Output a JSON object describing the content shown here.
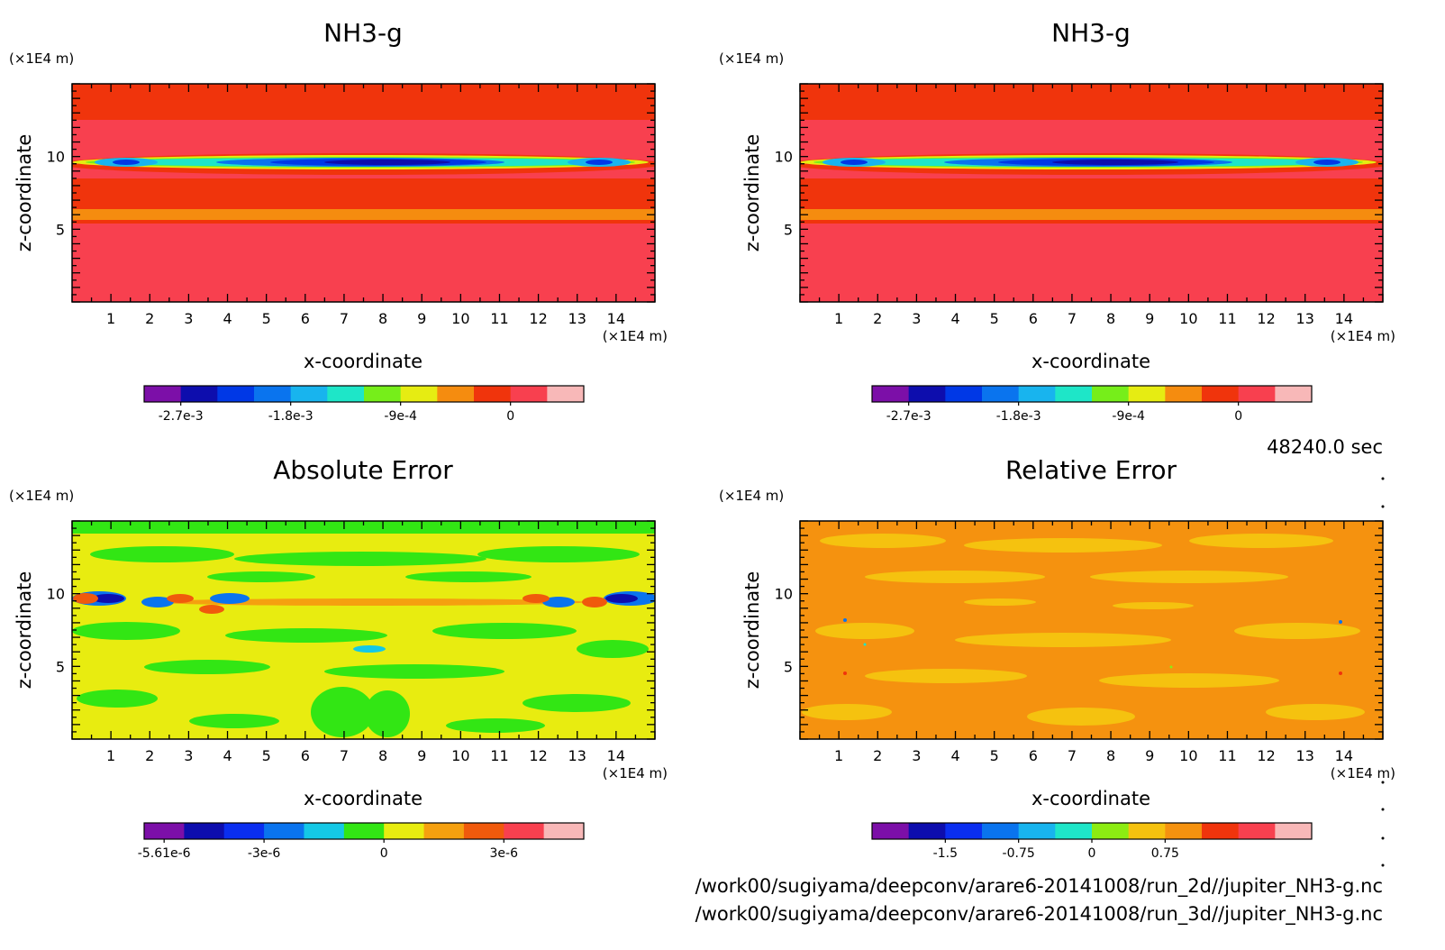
{
  "time_label": "48240.0 sec",
  "file_paths": [
    "/work00/sugiyama/deepconv/arare6-20141008/run_2d//jupiter_NH3-g.nc",
    "/work00/sugiyama/deepconv/arare6-20141008/run_3d//jupiter_NH3-g.nc"
  ],
  "chart_data": [
    {
      "type": "heatmap",
      "title": "NH3-g",
      "xlabel": "x-coordinate",
      "ylabel": "z-coordinate",
      "x_unit": "(×1E4 m)",
      "y_unit": "(×1E4 m)",
      "xlim": [
        0,
        15
      ],
      "ylim": [
        0,
        15
      ],
      "x_ticks": [
        1,
        2,
        3,
        4,
        5,
        6,
        7,
        8,
        9,
        10,
        11,
        12,
        13,
        14
      ],
      "y_ticks": [
        5,
        10
      ],
      "field": "mostly ~0 (red); strong negative band near z=9.5 reaching -2.7e-3 (dark blue) centred at x=7-10; weak orange layer near z=6",
      "colorbar": {
        "colors": [
          "#7c0fa8",
          "#0d0dad",
          "#0038e6",
          "#0a74ee",
          "#18b4ee",
          "#1ee6c8",
          "#76ee1a",
          "#e6ec12",
          "#f58c0f",
          "#f0340c",
          "#f8404f",
          "#f8b8b8"
        ],
        "tick_labels": [
          "-2.7e-3",
          "-1.8e-3",
          "-9e-4",
          "0"
        ],
        "tick_positions": [
          1,
          4,
          7,
          10
        ]
      }
    },
    {
      "type": "heatmap",
      "title": "NH3-g",
      "xlabel": "x-coordinate",
      "ylabel": "z-coordinate",
      "x_unit": "(×1E4 m)",
      "y_unit": "(×1E4 m)",
      "xlim": [
        0,
        15
      ],
      "ylim": [
        0,
        15
      ],
      "x_ticks": [
        1,
        2,
        3,
        4,
        5,
        6,
        7,
        8,
        9,
        10,
        11,
        12,
        13,
        14
      ],
      "y_ticks": [
        5,
        10
      ],
      "field": "mostly ~0 (red); strong negative band near z=9.5 reaching -2.7e-3 (dark blue) centred at x=7-10; weak orange layer near z=6",
      "colorbar": {
        "colors": [
          "#7c0fa8",
          "#0d0dad",
          "#0038e6",
          "#0a74ee",
          "#18b4ee",
          "#1ee6c8",
          "#76ee1a",
          "#e6ec12",
          "#f58c0f",
          "#f0340c",
          "#f8404f",
          "#f8b8b8"
        ],
        "tick_labels": [
          "-2.7e-3",
          "-1.8e-3",
          "-9e-4",
          "0"
        ],
        "tick_positions": [
          1,
          4,
          7,
          10
        ]
      }
    },
    {
      "type": "heatmap",
      "title": "Absolute Error",
      "xlabel": "x-coordinate",
      "ylabel": "z-coordinate",
      "x_unit": "(×1E4 m)",
      "y_unit": "(×1E4 m)",
      "xlim": [
        0,
        15
      ],
      "ylim": [
        0,
        15
      ],
      "x_ticks": [
        1,
        2,
        3,
        4,
        5,
        6,
        7,
        8,
        9,
        10,
        11,
        12,
        13,
        14
      ],
      "y_ticks": [
        5,
        10
      ],
      "field": "alternating small values near 0 (green/yellow patches); larger errors of about +/-5e-6 (blue/red) along z=9.5, especially near x=1-4 and x=12-15",
      "colorbar": {
        "colors": [
          "#7c0fa8",
          "#0d0dad",
          "#0a2ef0",
          "#0a74ee",
          "#14c8e6",
          "#32e614",
          "#e8ec10",
          "#f5a00f",
          "#f05a0c",
          "#f8404f",
          "#f8b8b8"
        ],
        "tick_labels": [
          "-5.61e-6",
          "-3e-6",
          "0",
          "3e-6"
        ],
        "tick_positions": [
          0.5,
          3,
          6,
          9
        ]
      }
    },
    {
      "type": "heatmap",
      "title": "Relative Error",
      "xlabel": "x-coordinate",
      "ylabel": "z-coordinate",
      "x_unit": "(×1E4 m)",
      "y_unit": "(×1E4 m)",
      "xlim": [
        0,
        15
      ],
      "ylim": [
        0,
        15
      ],
      "x_ticks": [
        1,
        2,
        3,
        4,
        5,
        6,
        7,
        8,
        9,
        10,
        11,
        12,
        13,
        14
      ],
      "y_ticks": [
        5,
        10
      ],
      "field": "nearly uniform about 0 to 0.25 (orange/light orange patches), a few isolated specks",
      "colorbar": {
        "colors": [
          "#7c0fa8",
          "#0d0dad",
          "#0a2ef0",
          "#0a74ee",
          "#18b4ee",
          "#1ee6c8",
          "#8cec12",
          "#f5c20f",
          "#f5920f",
          "#f0340c",
          "#f8404f",
          "#f8b8b8"
        ],
        "tick_labels": [
          "-1.5",
          "-0.75",
          "0",
          "0.75"
        ],
        "tick_positions": [
          2,
          4,
          6,
          8
        ]
      }
    }
  ]
}
